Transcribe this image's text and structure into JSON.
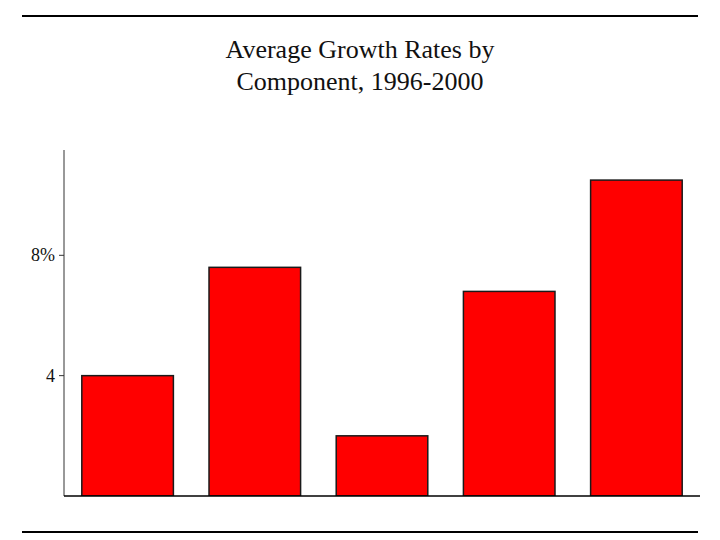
{
  "chart_data": {
    "type": "bar",
    "title": "Average Growth Rates by\nComponent, 1996-2000",
    "categories": [
      null,
      null,
      null,
      null,
      null
    ],
    "values": [
      4,
      7.6,
      2.0,
      6.8,
      10.5
    ],
    "color": "#FF0000",
    "ylim": [
      0,
      11.5
    ],
    "yticks": [
      {
        "value": 8,
        "label": "8%"
      },
      4
    ],
    "grid": false,
    "tick_labels": "y"
  }
}
